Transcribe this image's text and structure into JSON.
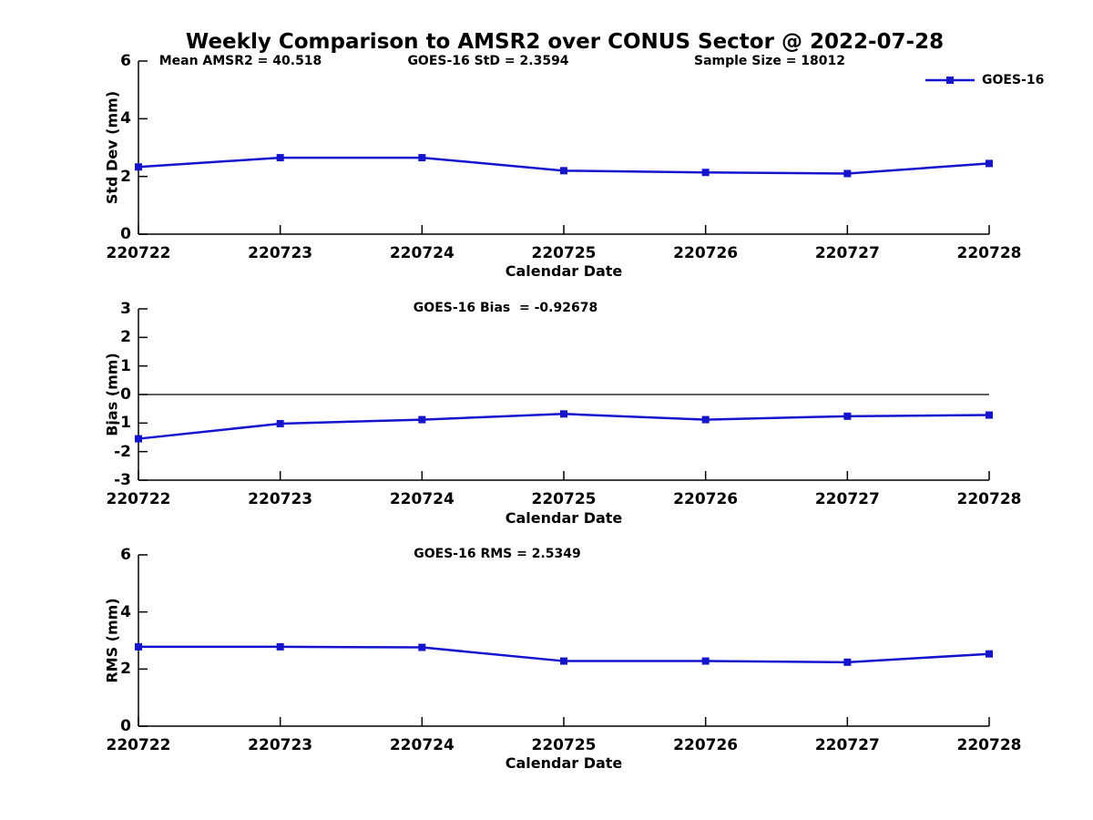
{
  "figure": {
    "title": "Weekly Comparison to AMSR2 over CONUS Sector @ 2022-07-28",
    "background_color": "#ffffff",
    "axis_color": "#000000",
    "line_color": "#1414cf",
    "legend": {
      "label": "GOES-16",
      "position": "top-right-outside"
    }
  },
  "chart_data": [
    {
      "type": "line",
      "panel": "std-dev",
      "annotations": [
        "Mean AMSR2 = 40.518",
        "GOES-16 StD = 2.3594",
        "Sample Size = 18012"
      ],
      "categories": [
        "220722",
        "220723",
        "220724",
        "220725",
        "220726",
        "220727",
        "220728"
      ],
      "series": [
        {
          "name": "GOES-16",
          "values": [
            2.33,
            2.65,
            2.65,
            2.2,
            2.14,
            2.1,
            2.45
          ]
        }
      ],
      "xlabel": "Calendar Date",
      "ylabel": "Std Dev (mm)",
      "ylim": [
        0,
        6
      ],
      "yticks": [
        0,
        2,
        4,
        6
      ],
      "zero_line": false,
      "grid": false,
      "marker": "square"
    },
    {
      "type": "line",
      "panel": "bias",
      "annotations": [
        "GOES-16 Bias  = -0.92678"
      ],
      "categories": [
        "220722",
        "220723",
        "220724",
        "220725",
        "220726",
        "220727",
        "220728"
      ],
      "series": [
        {
          "name": "GOES-16",
          "values": [
            -1.55,
            -1.02,
            -0.88,
            -0.68,
            -0.88,
            -0.76,
            -0.72
          ]
        }
      ],
      "xlabel": "Calendar Date",
      "ylabel": "Bias (mm)",
      "ylim": [
        -3,
        3
      ],
      "yticks": [
        3,
        2,
        1,
        0,
        -1,
        -2,
        -3
      ],
      "zero_line": true,
      "grid": false,
      "marker": "square"
    },
    {
      "type": "line",
      "panel": "rms",
      "annotations": [
        "GOES-16 RMS = 2.5349"
      ],
      "categories": [
        "220722",
        "220723",
        "220724",
        "220725",
        "220726",
        "220727",
        "220728"
      ],
      "series": [
        {
          "name": "GOES-16",
          "values": [
            2.78,
            2.78,
            2.76,
            2.28,
            2.28,
            2.24,
            2.53
          ]
        }
      ],
      "xlabel": "Calendar Date",
      "ylabel": "RMS (mm)",
      "ylim": [
        0,
        6
      ],
      "yticks": [
        0,
        2,
        4,
        6
      ],
      "zero_line": false,
      "grid": false,
      "marker": "square"
    }
  ]
}
